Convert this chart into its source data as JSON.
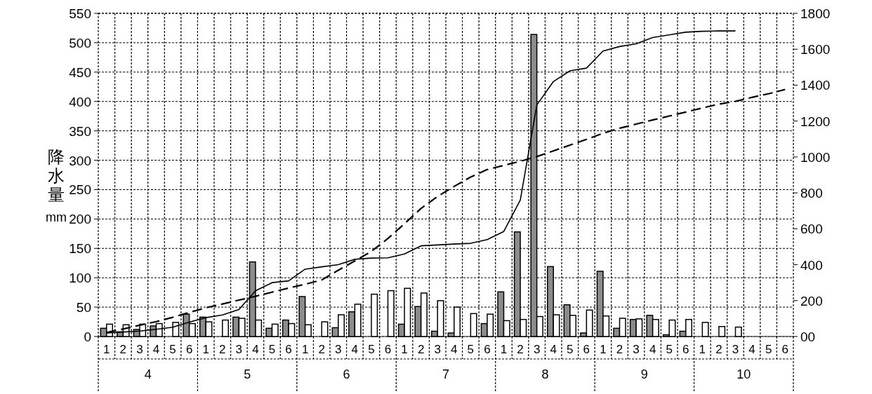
{
  "chart_data": {
    "type": "bar",
    "ylabel": "降水量 mm",
    "categories": [
      "1",
      "2",
      "3",
      "4",
      "5",
      "6",
      "1",
      "2",
      "3",
      "4",
      "5",
      "6",
      "1",
      "2",
      "3",
      "4",
      "5",
      "6",
      "1",
      "2",
      "3",
      "4",
      "5",
      "6",
      "1",
      "2",
      "3",
      "4",
      "5",
      "6",
      "1",
      "2",
      "3",
      "4",
      "5",
      "6",
      "1",
      "2",
      "3",
      "4",
      "5",
      "6"
    ],
    "annotations": [
      "4",
      "5",
      "6",
      "7",
      "8",
      "9",
      "10"
    ],
    "ylim": [
      0,
      550
    ],
    "yticks": [
      0,
      50,
      100,
      150,
      200,
      250,
      300,
      350,
      400,
      450,
      500,
      550
    ],
    "y2lim": [
      0,
      1800
    ],
    "y2ticks": [
      {
        "value": 0,
        "label": "00"
      },
      200,
      400,
      600,
      800,
      1000,
      1200,
      1400,
      1600,
      1800
    ],
    "grid": true,
    "series": [
      {
        "color": "#8c8c8c",
        "values": [
          14,
          8,
          12,
          18,
          null,
          38,
          33,
          0,
          33,
          127,
          14,
          28,
          68,
          0,
          15,
          42,
          0,
          0,
          21,
          51,
          9,
          6,
          0,
          22,
          76,
          178,
          514,
          119,
          54,
          6,
          111,
          14,
          29,
          36,
          3,
          9,
          0,
          null,
          null,
          null,
          null,
          null
        ]
      },
      {
        "color": "#ffffff",
        "values": [
          21,
          20,
          21,
          22,
          24,
          22,
          25,
          28,
          31,
          28,
          21,
          22,
          20,
          25,
          37,
          55,
          72,
          78,
          82,
          74,
          61,
          50,
          39,
          38,
          27,
          29,
          34,
          37,
          36,
          45,
          35,
          31,
          30,
          29,
          28,
          29,
          24,
          17,
          16,
          null,
          null,
          null
        ]
      },
      {
        "type": "line",
        "axis": "y2",
        "color": "#000000",
        "line_style": "solid",
        "values": [
          20,
          25,
          30,
          40,
          52,
          80,
          105,
          120,
          150,
          255,
          300,
          310,
          375,
          388,
          400,
          430,
          437,
          438,
          460,
          505,
          510,
          515,
          519,
          540,
          585,
          760,
          1290,
          1420,
          1480,
          1495,
          1590,
          1615,
          1630,
          1665,
          1680,
          1695,
          1700,
          1702,
          1702,
          null,
          null,
          null
        ]
      },
      {
        "type": "line",
        "axis": "y2",
        "color": "#000000",
        "line_style": "dashed",
        "values": [
          22,
          42,
          63,
          83,
          107,
          134,
          160,
          181,
          203,
          224,
          247,
          270,
          291,
          315,
          369,
          421,
          474,
          546,
          628,
          713,
          780,
          836,
          888,
          930,
          953,
          976,
          1002,
          1034,
          1066,
          1098,
          1132,
          1160,
          1183,
          1206,
          1228,
          1250,
          1273,
          1294,
          1310,
          1332,
          1352,
          1376
        ]
      }
    ]
  }
}
